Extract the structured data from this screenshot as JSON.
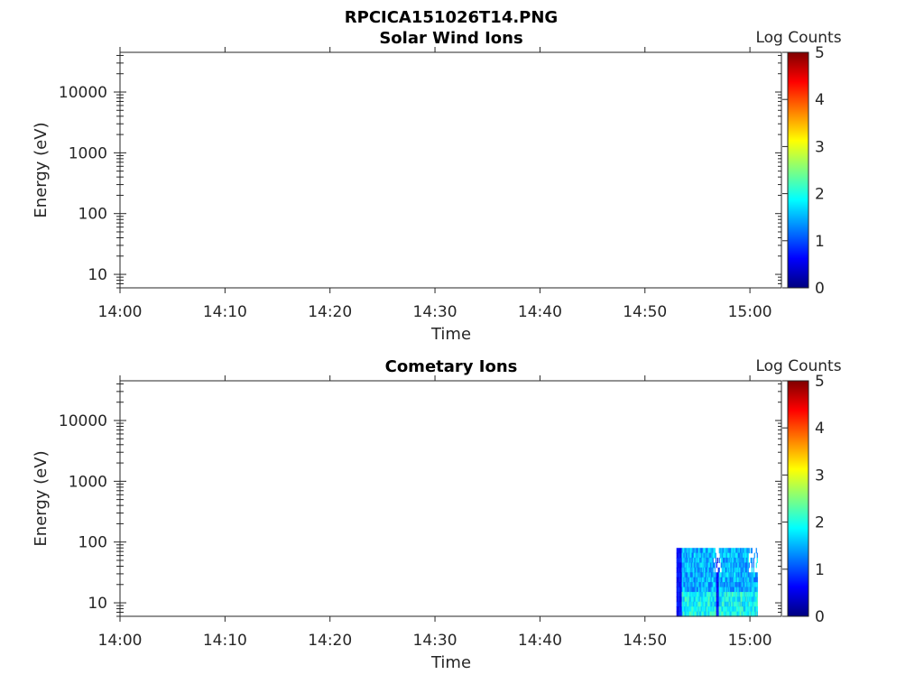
{
  "figure_title": "RPCICA151026T14.PNG",
  "colors": {
    "axis": "#262626",
    "background": "#ffffff",
    "colormap": [
      "#00007f",
      "#0000ff",
      "#007fff",
      "#00ffff",
      "#7fff7f",
      "#ffff00",
      "#ff7f00",
      "#ff0000",
      "#7f0000"
    ]
  },
  "chart_data": [
    {
      "type": "heatmap",
      "title": "Solar Wind Ions",
      "xlabel": "Time",
      "ylabel": "Energy (eV)",
      "x_ticks": [
        "14:00",
        "14:10",
        "14:20",
        "14:30",
        "14:40",
        "14:50",
        "15:00"
      ],
      "y_ticks": [
        "10",
        "100",
        "1000",
        "10000"
      ],
      "y_scale": "log",
      "ylim": [
        6,
        45000
      ],
      "xlim": [
        "14:00",
        "15:03"
      ],
      "colorbar": {
        "label": "Log Counts",
        "range": [
          0,
          5
        ],
        "ticks": [
          "0",
          "1",
          "2",
          "3",
          "4",
          "5"
        ]
      },
      "data_regions": []
    },
    {
      "type": "heatmap",
      "title": "Cometary Ions",
      "xlabel": "Time",
      "ylabel": "Energy (eV)",
      "x_ticks": [
        "14:00",
        "14:10",
        "14:20",
        "14:30",
        "14:40",
        "14:50",
        "15:00"
      ],
      "y_ticks": [
        "10",
        "100",
        "1000",
        "10000"
      ],
      "y_scale": "log",
      "ylim": [
        6,
        45000
      ],
      "xlim": [
        "14:00",
        "15:03"
      ],
      "colorbar": {
        "label": "Log Counts",
        "range": [
          0,
          5
        ],
        "ticks": [
          "0",
          "1",
          "2",
          "3",
          "4",
          "5"
        ]
      },
      "data_regions": [
        {
          "time_start": "14:53",
          "time_end": "15:00.7",
          "energy_min": 6,
          "energy_max": 80,
          "log_counts_typical": 1.5
        }
      ]
    }
  ]
}
